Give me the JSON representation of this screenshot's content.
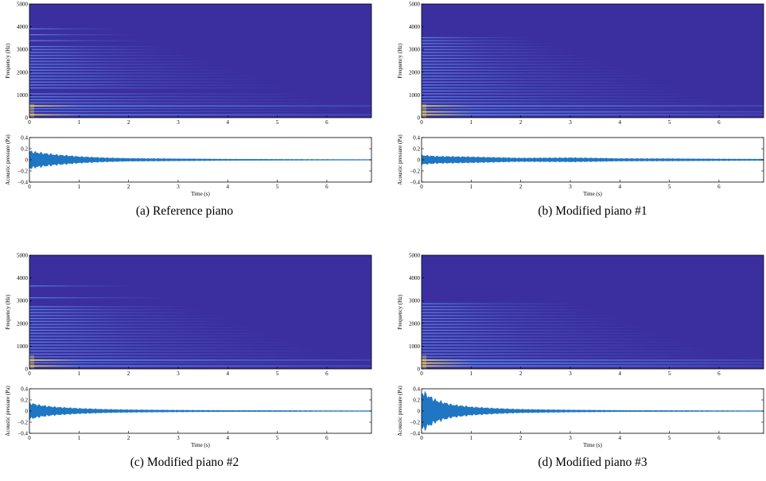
{
  "chart_data": [
    {
      "type": "heatmap",
      "caption": "(a) Reference piano",
      "spectrogram": {
        "ylabel": "Frequency (Hz)",
        "xlim": [
          0,
          6.9
        ],
        "ylim": [
          0,
          5000
        ],
        "xticks": [
          0,
          1,
          2,
          3,
          4,
          5,
          6
        ],
        "yticks": [
          0,
          1000,
          2000,
          3000,
          4000,
          5000
        ],
        "harmonics_hz": [
          130,
          260,
          390,
          520,
          650,
          780,
          910,
          1040,
          1300,
          1430,
          1560,
          1690,
          1820,
          1950,
          2080,
          2210,
          2340,
          2470,
          2600,
          2730,
          2860,
          2990,
          3120,
          3380,
          3640,
          3900
        ],
        "strong_hz": [
          130,
          520
        ]
      },
      "waveform": {
        "type": "area",
        "xlabel": "Time (s)",
        "ylabel": "Acoustic pressure (Pa)",
        "xlim": [
          0,
          6.9
        ],
        "ylim": [
          -0.4,
          0.4
        ],
        "xticks": [
          0,
          1,
          2,
          3,
          4,
          5,
          6
        ],
        "yticks": [
          -0.4,
          -0.2,
          0,
          0.2,
          0.4
        ],
        "envelope_t": [
          0,
          0.05,
          0.2,
          0.5,
          1,
          1.5,
          2,
          3,
          4,
          5,
          6,
          6.9
        ],
        "envelope_pa": [
          0.15,
          0.14,
          0.12,
          0.09,
          0.055,
          0.035,
          0.025,
          0.018,
          0.012,
          0.009,
          0.007,
          0.006
        ]
      }
    },
    {
      "type": "heatmap",
      "caption": "(b) Modified piano #1",
      "spectrogram": {
        "ylabel": "Frequency (Hz)",
        "xlim": [
          0,
          6.9
        ],
        "ylim": [
          0,
          5000
        ],
        "xticks": [
          0,
          1,
          2,
          3,
          4,
          5,
          6
        ],
        "yticks": [
          0,
          1000,
          2000,
          3000,
          4000,
          5000
        ],
        "harmonics_hz": [
          130,
          260,
          390,
          520,
          650,
          780,
          910,
          1040,
          1170,
          1300,
          1430,
          1560,
          1690,
          1820,
          1950,
          2080,
          2210,
          2340,
          2470,
          2600,
          2730,
          2860,
          2990,
          3120,
          3250,
          3380,
          3510
        ],
        "strong_hz": [
          130,
          260,
          520
        ]
      },
      "waveform": {
        "type": "area",
        "xlabel": "Time (s)",
        "ylabel": "Acoustic pressure (Pa)",
        "xlim": [
          0,
          6.9
        ],
        "ylim": [
          -0.4,
          0.4
        ],
        "xticks": [
          0,
          1,
          2,
          3,
          4,
          5,
          6
        ],
        "yticks": [
          -0.4,
          -0.2,
          0,
          0.2,
          0.4
        ],
        "envelope_t": [
          0,
          0.05,
          0.3,
          1,
          1.5,
          2,
          3,
          3.5,
          4,
          5,
          6,
          6.9
        ],
        "envelope_pa": [
          0.08,
          0.075,
          0.06,
          0.05,
          0.04,
          0.03,
          0.035,
          0.03,
          0.022,
          0.02,
          0.015,
          0.012
        ]
      }
    },
    {
      "type": "heatmap",
      "caption": "(c) Modified piano #2",
      "spectrogram": {
        "ylabel": "Frequency (Hz)",
        "xlim": [
          0,
          6.9
        ],
        "ylim": [
          0,
          5000
        ],
        "xticks": [
          0,
          1,
          2,
          3,
          4,
          5,
          6
        ],
        "yticks": [
          0,
          1000,
          2000,
          3000,
          4000,
          5000
        ],
        "harmonics_hz": [
          130,
          260,
          390,
          520,
          650,
          780,
          910,
          1040,
          1170,
          1300,
          1430,
          1560,
          1690,
          1820,
          1950,
          2080,
          2210,
          2340,
          2470,
          2600,
          2730,
          3120,
          3640
        ],
        "strong_hz": [
          130,
          390
        ]
      },
      "waveform": {
        "type": "area",
        "xlabel": "Time (s)",
        "ylabel": "Acoustic pressure (Pa)",
        "xlim": [
          0,
          6.9
        ],
        "ylim": [
          -0.4,
          0.4
        ],
        "xticks": [
          0,
          1,
          2,
          3,
          4,
          5,
          6
        ],
        "yticks": [
          -0.4,
          -0.2,
          0,
          0.2,
          0.4
        ],
        "envelope_t": [
          0,
          0.05,
          0.2,
          0.5,
          1,
          1.5,
          2,
          3,
          4,
          5,
          6,
          6.9
        ],
        "envelope_pa": [
          0.14,
          0.13,
          0.1,
          0.07,
          0.045,
          0.03,
          0.022,
          0.015,
          0.011,
          0.009,
          0.007,
          0.006
        ]
      }
    },
    {
      "type": "heatmap",
      "caption": "(d) Modified piano #3",
      "spectrogram": {
        "ylabel": "Frequency (Hz)",
        "xlim": [
          0,
          6.9
        ],
        "ylim": [
          0,
          5000
        ],
        "xticks": [
          0,
          1,
          2,
          3,
          4,
          5,
          6
        ],
        "yticks": [
          0,
          1000,
          2000,
          3000,
          4000,
          5000
        ],
        "harmonics_hz": [
          130,
          260,
          390,
          520,
          650,
          780,
          910,
          1040,
          1170,
          1300,
          1430,
          1560,
          1690,
          1820,
          1950,
          2080,
          2210,
          2340,
          2470,
          2600,
          2730,
          2860
        ],
        "strong_hz": [
          130,
          260,
          390
        ]
      },
      "waveform": {
        "type": "area",
        "xlabel": "Time (s)",
        "ylabel": "Acoustic pressure (Pa)",
        "xlim": [
          0,
          6.9
        ],
        "ylim": [
          -0.4,
          0.4
        ],
        "xticks": [
          0,
          1,
          2,
          3,
          4,
          5,
          6
        ],
        "yticks": [
          -0.4,
          -0.2,
          0,
          0.2,
          0.4
        ],
        "envelope_t": [
          0,
          0.03,
          0.1,
          0.3,
          0.6,
          1,
          1.5,
          2,
          3,
          4,
          5,
          6.9
        ],
        "envelope_pa": [
          0.3,
          0.33,
          0.28,
          0.18,
          0.11,
          0.07,
          0.045,
          0.03,
          0.018,
          0.012,
          0.009,
          0.006
        ]
      }
    }
  ],
  "colors": {
    "background_dark": "#3b2fa0",
    "harmonic": "#5a8ee6",
    "harmonic_strong": "#e8d35a",
    "waveform": "#1f77c4"
  }
}
